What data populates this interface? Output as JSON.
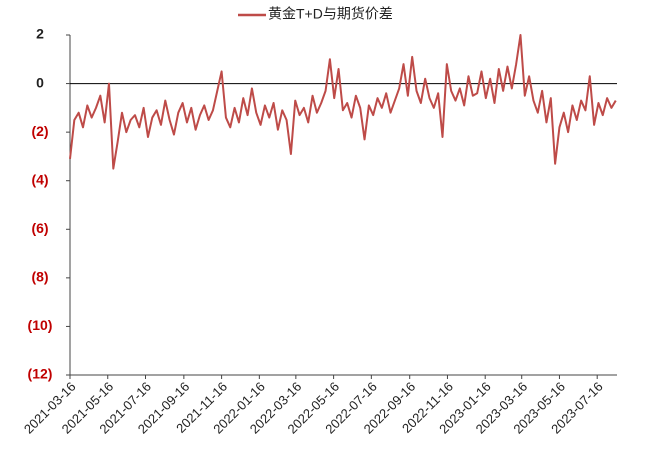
{
  "chart_data": {
    "type": "line",
    "series": [
      {
        "name": "黄金T+D与期货价差",
        "color": "#be4b48",
        "values": [
          -3.1,
          -1.5,
          -1.2,
          -1.8,
          -0.9,
          -1.4,
          -1.0,
          -0.5,
          -1.6,
          0.0,
          -3.5,
          -2.4,
          -1.2,
          -2.0,
          -1.5,
          -1.3,
          -1.8,
          -1.0,
          -2.2,
          -1.4,
          -1.1,
          -1.7,
          -0.7,
          -1.5,
          -2.1,
          -1.2,
          -0.8,
          -1.6,
          -1.0,
          -1.9,
          -1.3,
          -0.9,
          -1.5,
          -1.1,
          -0.3,
          0.5,
          -1.4,
          -1.8,
          -1.0,
          -1.6,
          -0.6,
          -1.3,
          -0.2,
          -1.2,
          -1.7,
          -0.9,
          -1.4,
          -0.8,
          -1.9,
          -1.1,
          -1.5,
          -2.9,
          -0.7,
          -1.3,
          -1.0,
          -1.6,
          -0.5,
          -1.2,
          -0.8,
          -0.3,
          1.0,
          -0.6,
          0.6,
          -1.1,
          -0.8,
          -1.4,
          -0.5,
          -1.0,
          -2.3,
          -0.9,
          -1.3,
          -0.6,
          -1.0,
          -0.4,
          -1.2,
          -0.7,
          -0.2,
          0.8,
          -0.5,
          1.1,
          -0.3,
          -0.8,
          0.2,
          -0.6,
          -1.0,
          -0.4,
          -2.2,
          0.8,
          -0.3,
          -0.7,
          -0.2,
          -0.9,
          0.3,
          -0.5,
          -0.4,
          0.5,
          -0.6,
          0.2,
          -0.8,
          0.6,
          -0.3,
          0.7,
          -0.2,
          0.8,
          2.0,
          -0.5,
          0.3,
          -0.7,
          -1.2,
          -0.3,
          -1.6,
          -0.6,
          -3.3,
          -1.8,
          -1.2,
          -2.0,
          -0.9,
          -1.5,
          -0.7,
          -1.1,
          0.3,
          -1.7,
          -0.8,
          -1.3,
          -0.6,
          -1.0,
          -0.7
        ]
      }
    ],
    "x": [
      "2021-03-16",
      "2021-03-23",
      "2021-03-30",
      "2021-04-06",
      "2021-04-13",
      "2021-04-20",
      "2021-04-27",
      "2021-05-04",
      "2021-05-11",
      "2021-05-18",
      "2021-05-25",
      "2021-06-01",
      "2021-06-08",
      "2021-06-15",
      "2021-06-22",
      "2021-06-29",
      "2021-07-06",
      "2021-07-13",
      "2021-07-20",
      "2021-07-27",
      "2021-08-03",
      "2021-08-10",
      "2021-08-17",
      "2021-08-24",
      "2021-08-31",
      "2021-09-07",
      "2021-09-14",
      "2021-09-21",
      "2021-09-28",
      "2021-10-05",
      "2021-10-12",
      "2021-10-19",
      "2021-10-26",
      "2021-11-02",
      "2021-11-09",
      "2021-11-16",
      "2021-11-23",
      "2021-11-30",
      "2021-12-07",
      "2021-12-14",
      "2021-12-21",
      "2021-12-28",
      "2022-01-04",
      "2022-01-11",
      "2022-01-18",
      "2022-01-25",
      "2022-02-01",
      "2022-02-08",
      "2022-02-15",
      "2022-02-22",
      "2022-03-01",
      "2022-03-08",
      "2022-03-15",
      "2022-03-22",
      "2022-03-29",
      "2022-04-05",
      "2022-04-12",
      "2022-04-19",
      "2022-04-26",
      "2022-05-03",
      "2022-05-10",
      "2022-05-17",
      "2022-05-24",
      "2022-05-31",
      "2022-06-07",
      "2022-06-14",
      "2022-06-21",
      "2022-06-28",
      "2022-07-05",
      "2022-07-12",
      "2022-07-19",
      "2022-07-26",
      "2022-08-02",
      "2022-08-09",
      "2022-08-16",
      "2022-08-23",
      "2022-08-30",
      "2022-09-06",
      "2022-09-13",
      "2022-09-20",
      "2022-09-27",
      "2022-10-04",
      "2022-10-11",
      "2022-10-18",
      "2022-10-25",
      "2022-11-01",
      "2022-11-08",
      "2022-11-15",
      "2022-11-22",
      "2022-11-29",
      "2022-12-06",
      "2022-12-13",
      "2022-12-20",
      "2022-12-27",
      "2023-01-03",
      "2023-01-10",
      "2023-01-17",
      "2023-01-24",
      "2023-01-31",
      "2023-02-07",
      "2023-02-14",
      "2023-02-21",
      "2023-02-28",
      "2023-03-07",
      "2023-03-14",
      "2023-03-21",
      "2023-03-28",
      "2023-04-04",
      "2023-04-11",
      "2023-04-18",
      "2023-04-25",
      "2023-05-02",
      "2023-05-09",
      "2023-05-16",
      "2023-05-23",
      "2023-05-30",
      "2023-06-06",
      "2023-06-13",
      "2023-06-20",
      "2023-06-27",
      "2023-07-04",
      "2023-07-11",
      "2023-07-18",
      "2023-07-25",
      "2023-08-01",
      "2023-08-08",
      "2023-08-15"
    ],
    "xlim": [
      "2021-03-16",
      "2023-08-17"
    ],
    "xticks": [
      "2021-03-16",
      "2021-05-16",
      "2021-07-16",
      "2021-09-16",
      "2021-11-16",
      "2022-01-16",
      "2022-03-16",
      "2022-05-16",
      "2022-07-16",
      "2022-09-16",
      "2022-11-16",
      "2023-01-16",
      "2023-03-16",
      "2023-05-16",
      "2023-07-16"
    ],
    "ylim": [
      -12,
      2
    ],
    "yticks": [
      2,
      0,
      {
        "value": -2,
        "label": "(2)"
      },
      {
        "value": -4,
        "label": "(4)"
      },
      {
        "value": -6,
        "label": "(6)"
      },
      {
        "value": -8,
        "label": "(8)"
      },
      {
        "value": -10,
        "label": "(10)"
      },
      {
        "value": -12,
        "label": "(12)"
      }
    ],
    "negative_label_color": "#c00000",
    "legend": "top"
  }
}
